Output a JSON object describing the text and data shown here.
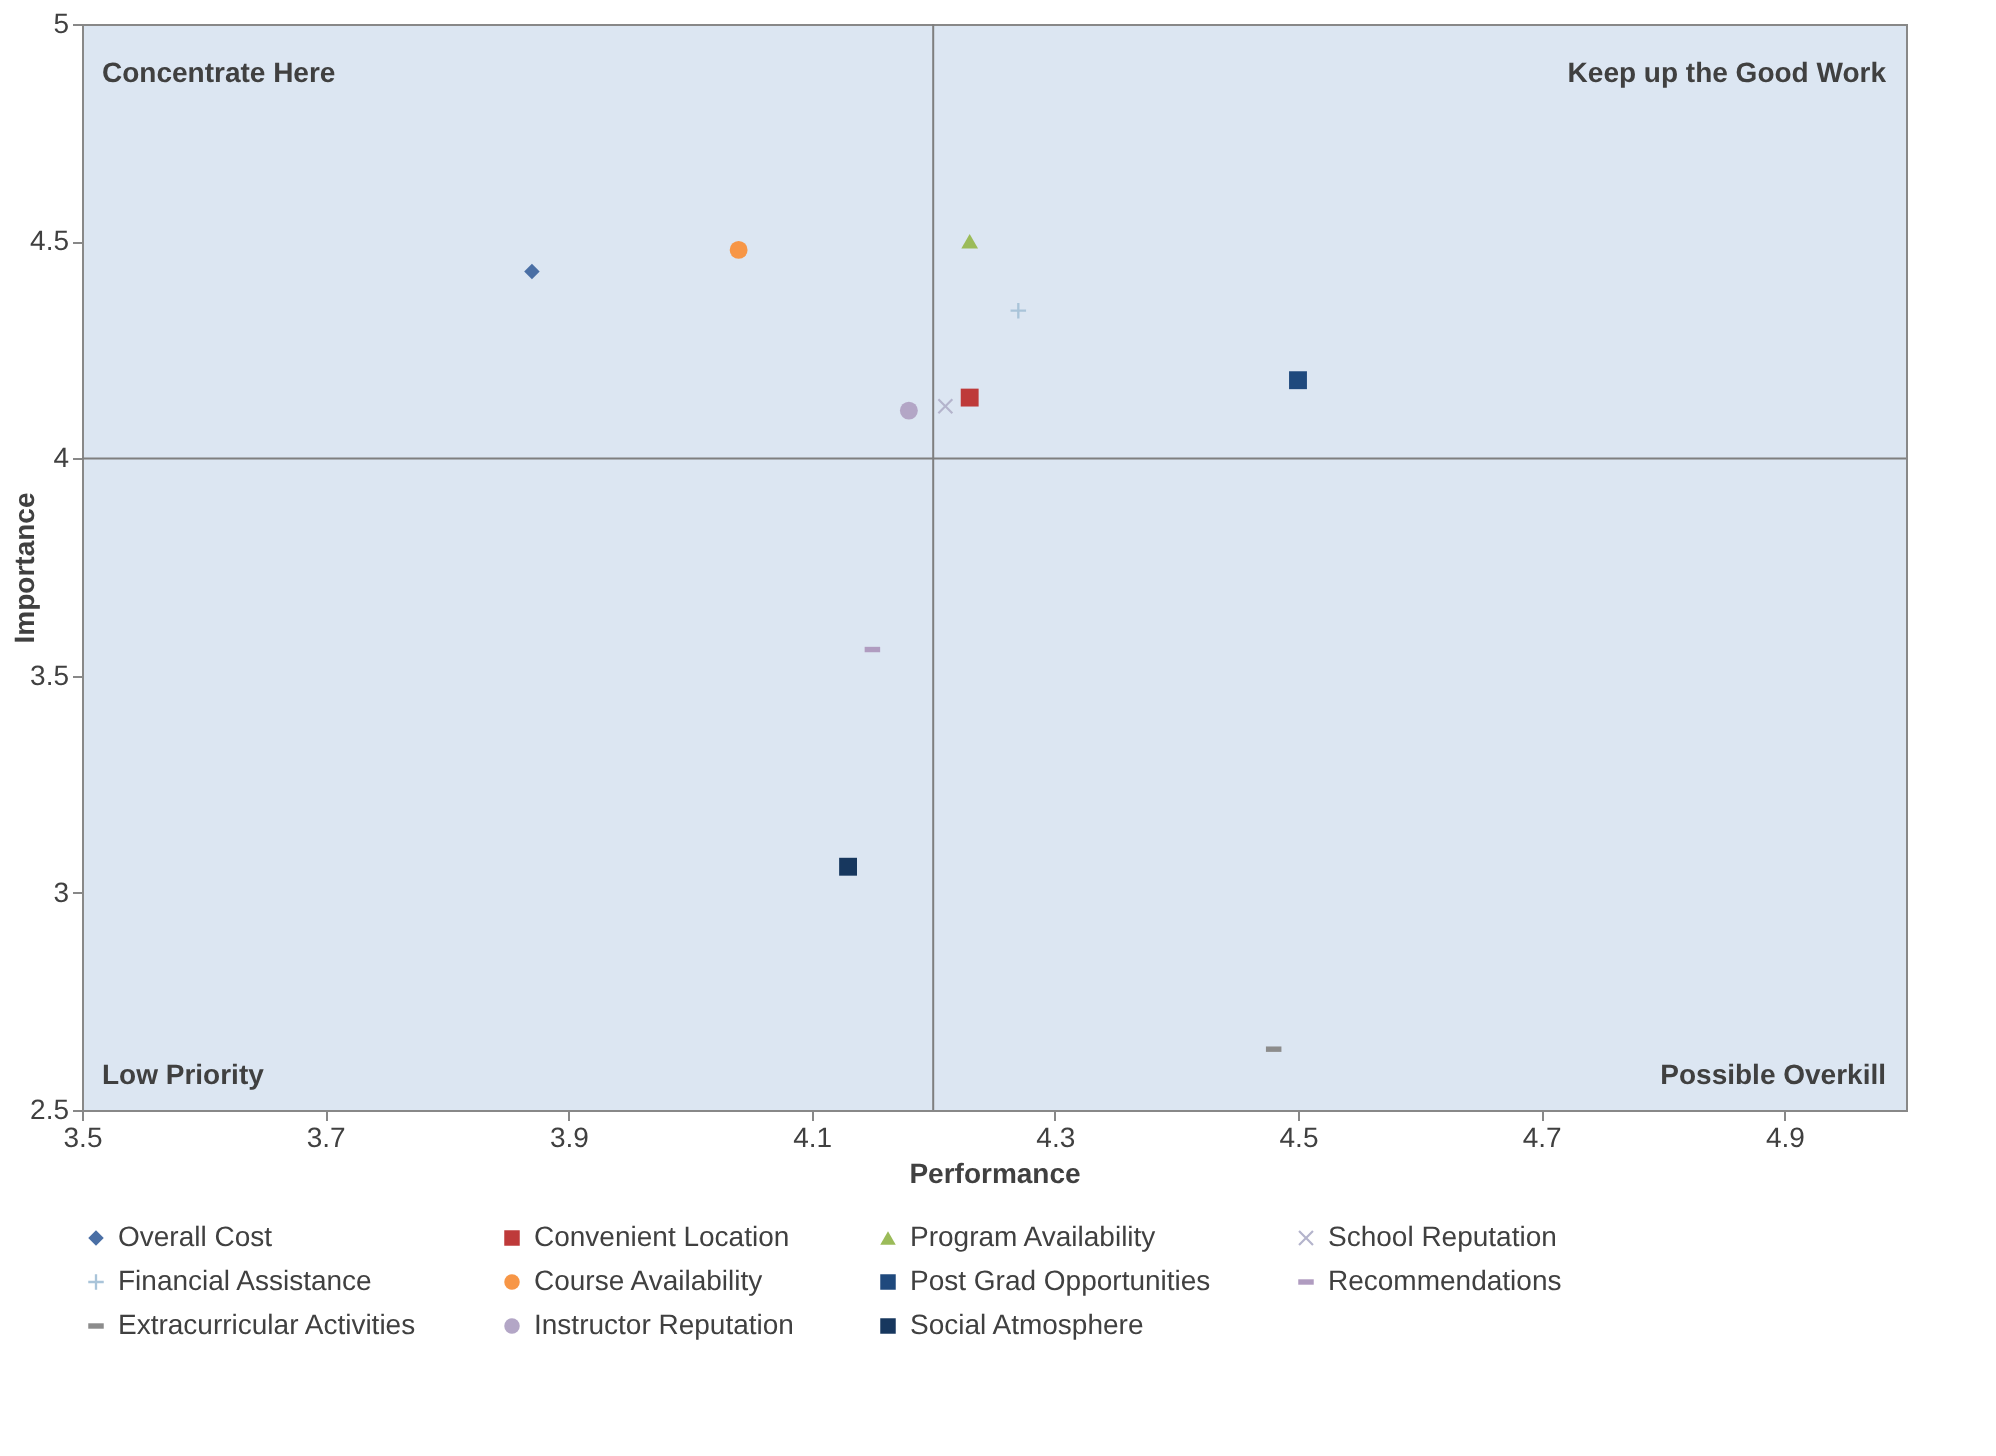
{
  "chart_data": {
    "type": "scatter",
    "xlabel": "Performance",
    "ylabel": "Importance",
    "xlim": [
      3.5,
      5.0
    ],
    "xticks": [
      3.5,
      3.7,
      3.9,
      4.1,
      4.3,
      4.5,
      4.7,
      4.9
    ],
    "ylim": [
      2.5,
      5
    ],
    "yticks": [
      2.5,
      3,
      3.5,
      4,
      4.5,
      5
    ],
    "grid": false,
    "legend": "bottom",
    "ref_lines": [
      {
        "axis": "x",
        "value": 4.2,
        "color": "#7f7f7f"
      },
      {
        "axis": "y",
        "value": 4,
        "color": "#7f7f7f"
      }
    ],
    "annotations": [
      "Concentrate Here",
      "Keep up the Good Work",
      "Low Priority",
      "Possible Overkill"
    ],
    "series": [
      {
        "name": "Overall Cost",
        "color": "#4a6fa5",
        "marker": "diamond",
        "x": [
          3.87
        ],
        "values": [
          4.43
        ]
      },
      {
        "name": "Convenient Location",
        "color": "#be3a3a",
        "marker": "square",
        "x": [
          4.23
        ],
        "values": [
          4.14
        ]
      },
      {
        "name": "Program Availability",
        "color": "#9bbb59",
        "marker": "triangle",
        "x": [
          4.23
        ],
        "values": [
          4.5
        ]
      },
      {
        "name": "School Reputation",
        "color": "#b4b4cc",
        "marker": "x",
        "x": [
          4.21
        ],
        "values": [
          4.12
        ]
      },
      {
        "name": "Financial Assistance",
        "color": "#a9c4d9",
        "marker": "cross",
        "x": [
          4.27
        ],
        "values": [
          4.34
        ]
      },
      {
        "name": "Course Availability",
        "color": "#f79646",
        "marker": "circle",
        "x": [
          4.04
        ],
        "values": [
          4.48
        ]
      },
      {
        "name": "Post Grad Opportunities",
        "color": "#1f497d",
        "marker": "square",
        "x": [
          4.5
        ],
        "values": [
          4.18
        ]
      },
      {
        "name": "Recommendations",
        "color": "#b09cc0",
        "x": [
          4.15
        ],
        "values": [
          3.56
        ]
      },
      {
        "name": "Extracurricular Activities",
        "color": "#8c8c8c",
        "x": [
          4.48
        ],
        "values": [
          2.64
        ]
      },
      {
        "name": "Instructor Reputation",
        "color": "#b3a6c6",
        "marker": "circle",
        "x": [
          4.18
        ],
        "values": [
          4.11
        ]
      },
      {
        "name": "Social Atmosphere",
        "color": "#17375e",
        "marker": "square",
        "x": [
          4.13
        ],
        "values": [
          3.06
        ]
      }
    ]
  }
}
